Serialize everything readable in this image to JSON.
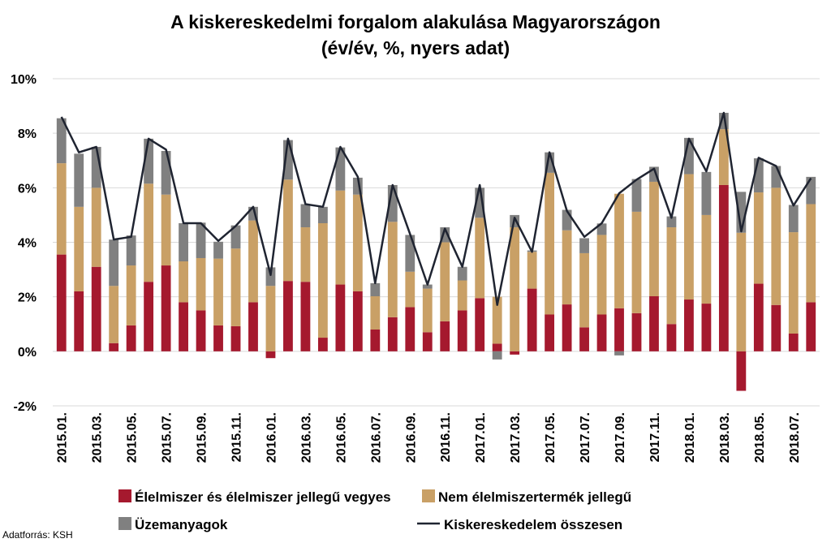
{
  "chart_data": {
    "type": "bar",
    "stacked": true,
    "title": "A kiskereskedelmi forgalom alakulása Magyarországon",
    "subtitle": "(év/év, %, nyers adat)",
    "source": "Adatforrás: KSH",
    "y_ticks": [
      "10%",
      "8%",
      "6%",
      "4%",
      "2%",
      "0%",
      "-2%"
    ],
    "ylim": [
      -2,
      10
    ],
    "grid": true,
    "legend_position": "bottom",
    "x_tick_labels": [
      "2015.01.",
      "2015.03.",
      "2015.05.",
      "2015.07.",
      "2015.09.",
      "2015.11.",
      "2016.01.",
      "2016.03.",
      "2016.05.",
      "2016.07.",
      "2016.09.",
      "2016.11.",
      "2017.01.",
      "2017.03.",
      "2017.05.",
      "2017.07.",
      "2017.09.",
      "2017.11.",
      "2018.01.",
      "2018.03.",
      "2018.05.",
      "2018.07."
    ],
    "categories": [
      "2015.01.",
      "2015.02.",
      "2015.03.",
      "2015.04.",
      "2015.05.",
      "2015.06.",
      "2015.07.",
      "2015.08.",
      "2015.09.",
      "2015.10.",
      "2015.11.",
      "2015.12.",
      "2016.01.",
      "2016.02.",
      "2016.03.",
      "2016.04.",
      "2016.05.",
      "2016.06.",
      "2016.07.",
      "2016.08.",
      "2016.09.",
      "2016.10.",
      "2016.11.",
      "2016.12.",
      "2017.01.",
      "2017.02.",
      "2017.03.",
      "2017.04.",
      "2017.05.",
      "2017.06.",
      "2017.07.",
      "2017.08.",
      "2017.09.",
      "2017.10.",
      "2017.11.",
      "2017.12.",
      "2018.01.",
      "2018.02.",
      "2018.03.",
      "2018.04.",
      "2018.05.",
      "2018.06.",
      "2018.07.",
      "2018.08."
    ],
    "series": [
      {
        "name": "Élelmiszer és élelmiszer jellegű vegyes",
        "kind": "bar",
        "color": "#A5192E",
        "values": [
          3.55,
          2.2,
          3.1,
          0.3,
          0.95,
          2.55,
          3.15,
          1.8,
          1.5,
          0.95,
          0.92,
          1.8,
          -0.25,
          2.58,
          2.55,
          0.5,
          2.45,
          2.2,
          0.8,
          1.25,
          1.62,
          0.7,
          1.1,
          1.5,
          1.95,
          0.28,
          -0.12,
          2.3,
          1.35,
          1.72,
          0.88,
          1.35,
          1.58,
          1.4,
          2.02,
          1.0,
          1.9,
          1.75,
          6.1,
          -1.45,
          2.48,
          1.7,
          0.65,
          1.8
        ]
      },
      {
        "name": "Nem élelmiszertermék jellegű",
        "kind": "bar",
        "color": "#C9A066",
        "values": [
          3.35,
          3.1,
          2.9,
          2.1,
          2.2,
          3.6,
          2.6,
          1.5,
          1.92,
          2.45,
          2.85,
          3.0,
          2.4,
          3.72,
          2.0,
          4.2,
          3.45,
          3.55,
          1.22,
          3.5,
          1.3,
          1.6,
          2.9,
          1.1,
          2.95,
          1.72,
          4.55,
          1.35,
          5.2,
          2.72,
          2.72,
          2.92,
          4.2,
          3.72,
          4.2,
          3.55,
          4.6,
          3.25,
          2.05,
          4.35,
          3.35,
          4.3,
          3.72,
          3.6
        ]
      },
      {
        "name": "Üzemanyagok",
        "kind": "bar",
        "color": "#808080",
        "values": [
          1.65,
          1.95,
          1.5,
          1.7,
          1.1,
          1.65,
          1.6,
          1.4,
          1.3,
          0.62,
          0.85,
          0.5,
          0.68,
          1.45,
          0.85,
          0.6,
          1.58,
          0.62,
          0.48,
          1.35,
          1.35,
          0.15,
          0.55,
          0.5,
          1.1,
          -0.3,
          0.45,
          0.05,
          0.75,
          0.75,
          0.55,
          0.42,
          -0.15,
          1.2,
          0.55,
          0.4,
          1.33,
          1.58,
          0.6,
          1.5,
          1.25,
          0.8,
          1.0,
          1.0
        ]
      },
      {
        "name": "Kiskereskedelem összesen",
        "kind": "line",
        "color": "#1F2431",
        "values": [
          8.6,
          7.3,
          7.5,
          4.1,
          4.2,
          7.8,
          7.4,
          4.7,
          4.7,
          4.05,
          4.6,
          5.3,
          2.8,
          7.8,
          5.4,
          5.3,
          7.5,
          6.4,
          2.5,
          6.1,
          4.3,
          2.45,
          4.5,
          3.1,
          6.1,
          1.7,
          4.9,
          3.65,
          7.3,
          5.15,
          4.2,
          4.7,
          5.8,
          6.3,
          6.7,
          4.9,
          7.8,
          6.6,
          8.75,
          4.4,
          7.1,
          6.8,
          5.35,
          6.35
        ]
      }
    ]
  }
}
